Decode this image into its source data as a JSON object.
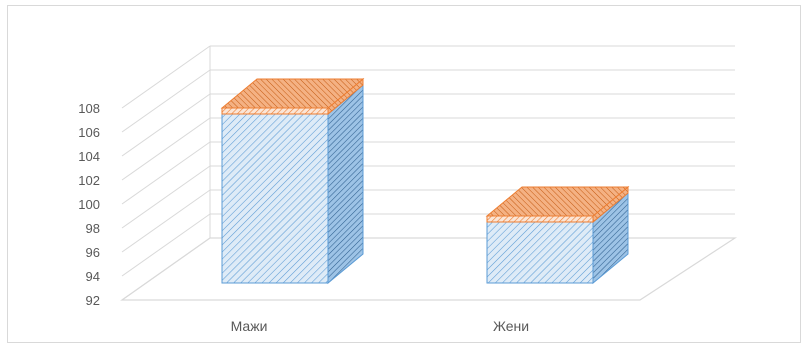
{
  "chart_data": {
    "type": "bar",
    "style": "3d-column",
    "categories": [
      "Мажи",
      "Жени"
    ],
    "series": [
      {
        "values": [
          107.5,
          98.5
        ],
        "color": "#5b9bd5",
        "pattern": "diagonal-hatch-blue"
      }
    ],
    "top_band": {
      "color": "#ed7d31",
      "pattern": "diagonal-hatch-orange"
    },
    "ylim": [
      92,
      108
    ],
    "yticks": [
      "92",
      "94",
      "96",
      "98",
      "100",
      "102",
      "104",
      "106",
      "108"
    ],
    "title": "",
    "xlabel": "",
    "ylabel": "",
    "grid": true,
    "legend": "none"
  }
}
